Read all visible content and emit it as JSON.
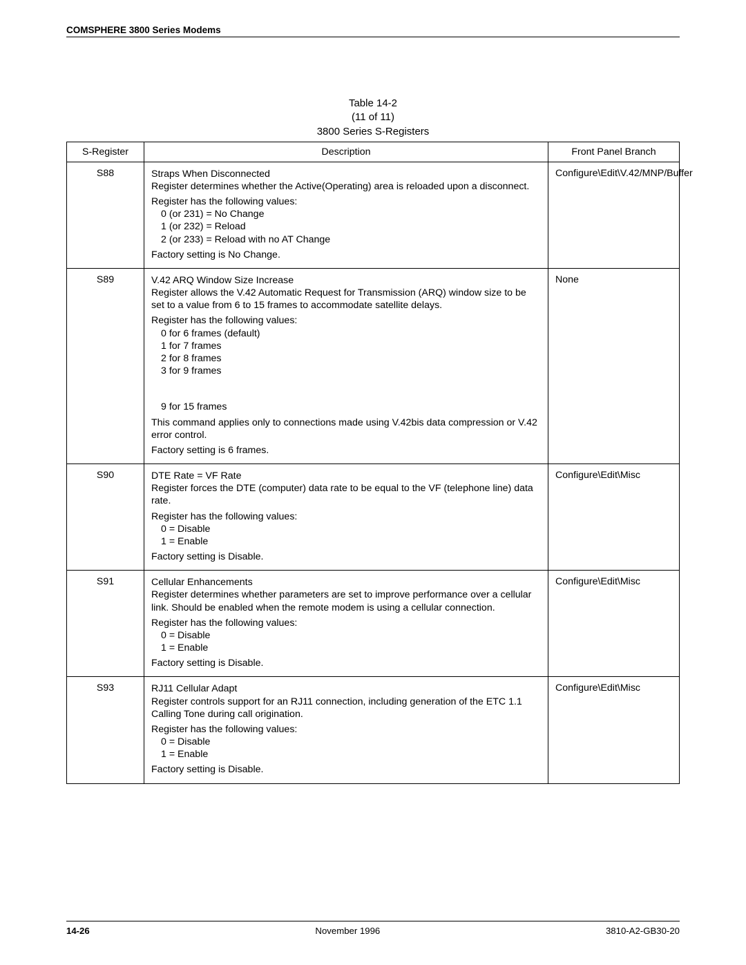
{
  "header": {
    "running_head": "COMSPHERE 3800 Series Modems"
  },
  "table": {
    "caption_line1": "Table 14-2",
    "caption_line2": "(11 of 11)",
    "caption_line3": "3800 Series S-Registers",
    "columns": {
      "reg": "S-Register",
      "desc": "Description",
      "branch": "Front Panel Branch"
    },
    "rows": [
      {
        "reg": "S88",
        "title": "Straps When Disconnected",
        "intro": "Register determines whether the Active(Operating) area is reloaded upon a disconnect.",
        "values_label": "Register has the following values:",
        "values": [
          "0 (or 231) = No Change",
          "1 (or 232) = Reload",
          "2 (or 233) = Reload with no AT Change"
        ],
        "factory": "Factory setting is No Change.",
        "branch": "Configure\\Edit\\V.42/MNP/Buffer"
      },
      {
        "reg": "S89",
        "title": "V.42 ARQ Window Size Increase",
        "intro": "Register allows the V.42 Automatic Request for Transmission (ARQ) window size to be set to a value from 6 to 15 frames to accommodate satellite delays.",
        "values_label": "Register has the following values:",
        "values": [
          "0 for 6 frames (default)",
          "1 for 7 frames",
          "2 for 8 frames",
          "3 for 9 frames"
        ],
        "continuation": "9 for 15 frames",
        "note": "This command applies only to connections made using V.42bis data compression or V.42 error control.",
        "factory": "Factory setting is 6 frames.",
        "branch": "None"
      },
      {
        "reg": "S90",
        "title": "DTE Rate = VF Rate",
        "intro": "Register forces the DTE (computer) data rate to be equal to the VF (telephone line) data rate.",
        "values_label": "Register has the following values:",
        "values": [
          "0 = Disable",
          "1 = Enable"
        ],
        "factory": "Factory setting is Disable.",
        "branch": "Configure\\Edit\\Misc"
      },
      {
        "reg": "S91",
        "title": "Cellular Enhancements",
        "intro": "Register determines whether parameters are set to improve performance over a cellular link. Should be enabled when the remote modem is using a cellular connection.",
        "values_label": "Register has the following values:",
        "values": [
          "0 = Disable",
          "1 = Enable"
        ],
        "factory": "Factory setting is Disable.",
        "branch": "Configure\\Edit\\Misc"
      },
      {
        "reg": "S93",
        "title": "RJ11 Cellular Adapt",
        "intro": "Register controls support for an RJ11 connection, including generation of the ETC 1.1 Calling Tone during call origination.",
        "values_label": "Register has the following values:",
        "values": [
          "0 = Disable",
          "1 = Enable"
        ],
        "factory": "Factory setting is Disable.",
        "branch": "Configure\\Edit\\Misc"
      }
    ]
  },
  "footer": {
    "page": "14-26",
    "center": "November 1996",
    "right": "3810-A2-GB30-20"
  }
}
